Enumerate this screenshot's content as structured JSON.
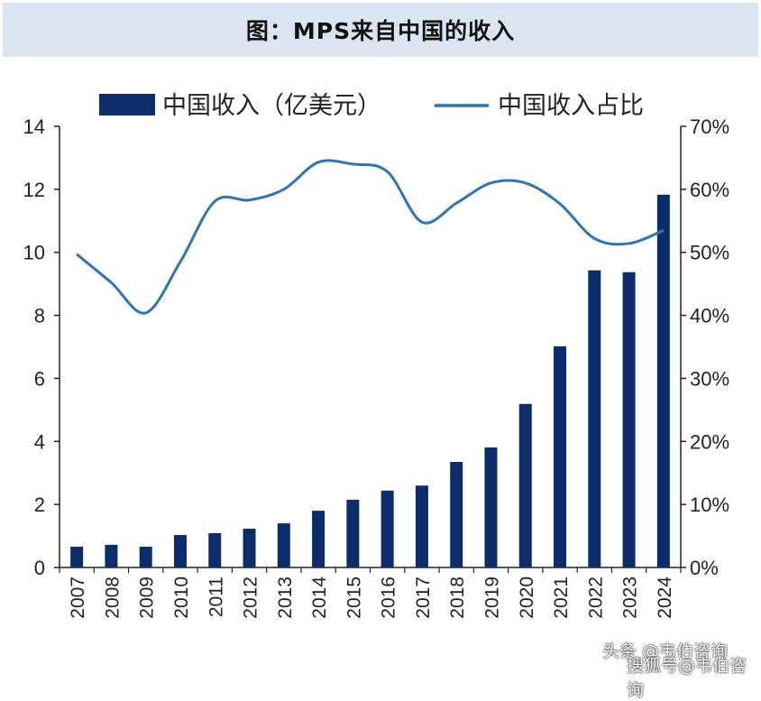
{
  "chart_data": {
    "type": "bar+line",
    "title": "图：MPS来自中国的收入",
    "categories": [
      "2007",
      "2008",
      "2009",
      "2010",
      "2011",
      "2012",
      "2013",
      "2014",
      "2015",
      "2016",
      "2017",
      "2018",
      "2019",
      "2020",
      "2021",
      "2022",
      "2023",
      "2024"
    ],
    "series": [
      {
        "name": "中国收入（亿美元）",
        "type": "bar",
        "axis": "left",
        "color": "#0c2d6b",
        "values": [
          0.66,
          0.72,
          0.66,
          1.03,
          1.09,
          1.23,
          1.4,
          1.8,
          2.15,
          2.44,
          2.6,
          3.35,
          3.81,
          5.19,
          7.02,
          9.43,
          9.37,
          11.83
        ]
      },
      {
        "name": "中国收入占比",
        "type": "line",
        "axis": "right",
        "color": "#2e75b6",
        "values": [
          49.7,
          45.2,
          40.4,
          48.5,
          58.1,
          58.3,
          60.0,
          64.3,
          64.0,
          62.8,
          54.8,
          57.8,
          61.0,
          61.0,
          57.7,
          52.2,
          51.4,
          53.5
        ]
      }
    ],
    "y_left": {
      "range": [
        0,
        14
      ],
      "ticks": [
        "0",
        "2",
        "4",
        "6",
        "8",
        "10",
        "12",
        "14"
      ]
    },
    "y_right": {
      "range": [
        0,
        70
      ],
      "ticks": [
        "0%",
        "10%",
        "20%",
        "30%",
        "40%",
        "50%",
        "60%",
        "70%"
      ]
    },
    "legend_placement": "top",
    "grid": false
  },
  "watermarks": [
    "头条 @韦伯咨询",
    "搜狐号@韦伯咨询"
  ]
}
